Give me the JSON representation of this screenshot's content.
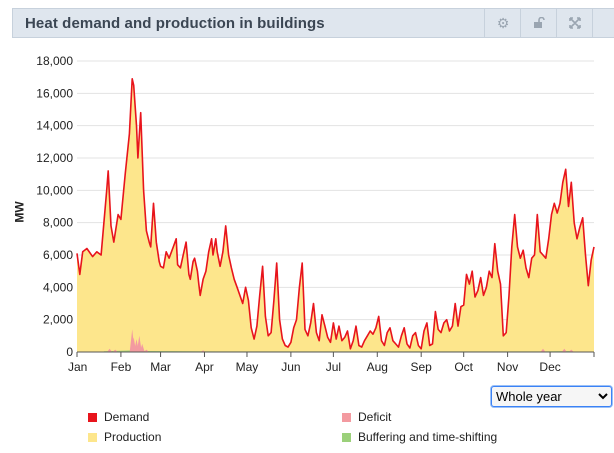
{
  "panel": {
    "title": "Heat demand and production in buildings",
    "buttons": [
      {
        "name": "settings-icon",
        "glyph": "⚙"
      },
      {
        "name": "unlock-icon",
        "glyph": "🔓"
      },
      {
        "name": "expand-icon",
        "glyph": "⤢"
      },
      {
        "name": "close-icon",
        "glyph": "✕"
      }
    ]
  },
  "period_select": {
    "selected": "Whole year",
    "options": [
      "Whole year"
    ]
  },
  "colors": {
    "demand": "#e8141c",
    "production": "#fde68c",
    "deficit": "#f39aa0",
    "buffering": "#9bd07a",
    "grid": "#e3e3e3"
  },
  "chart_data": {
    "type": "area",
    "title": "Heat demand and production in buildings",
    "xlabel": "",
    "ylabel": "MW",
    "ylim": [
      0,
      18000
    ],
    "yticks": [
      "0",
      "2,000",
      "4,000",
      "6,000",
      "8,000",
      "10,000",
      "12,000",
      "14,000",
      "16,000",
      "18,000"
    ],
    "x_tick_labels": [
      "Jan",
      "Feb",
      "Mar",
      "Apr",
      "May",
      "Jun",
      "Jul",
      "Aug",
      "Sep",
      "Oct",
      "Nov",
      "Dec"
    ],
    "x_unit": "day of year",
    "grid": true,
    "legend_position": "bottom",
    "series": [
      {
        "name": "Demand",
        "type": "line",
        "points": [
          [
            1,
            6100
          ],
          [
            3,
            4800
          ],
          [
            5,
            6200
          ],
          [
            8,
            6400
          ],
          [
            12,
            5900
          ],
          [
            15,
            6200
          ],
          [
            18,
            6000
          ],
          [
            22,
            10000
          ],
          [
            23,
            11200
          ],
          [
            25,
            7800
          ],
          [
            27,
            6800
          ],
          [
            30,
            8500
          ],
          [
            32,
            8200
          ],
          [
            35,
            11000
          ],
          [
            38,
            13500
          ],
          [
            40,
            16900
          ],
          [
            41,
            16500
          ],
          [
            43,
            14000
          ],
          [
            44,
            12000
          ],
          [
            46,
            14800
          ],
          [
            48,
            10000
          ],
          [
            50,
            7500
          ],
          [
            52,
            6800
          ],
          [
            53,
            6500
          ],
          [
            55,
            9200
          ],
          [
            57,
            6800
          ],
          [
            59,
            5600
          ],
          [
            60,
            5300
          ],
          [
            62,
            5200
          ],
          [
            64,
            6200
          ],
          [
            66,
            5800
          ],
          [
            69,
            6500
          ],
          [
            71,
            7000
          ],
          [
            72,
            5400
          ],
          [
            74,
            5200
          ],
          [
            76,
            6000
          ],
          [
            78,
            6800
          ],
          [
            80,
            4800
          ],
          [
            81,
            4500
          ],
          [
            83,
            5600
          ],
          [
            84,
            5800
          ],
          [
            86,
            5000
          ],
          [
            87,
            4200
          ],
          [
            88,
            3500
          ],
          [
            90,
            4500
          ],
          [
            92,
            5000
          ],
          [
            94,
            6200
          ],
          [
            96,
            7000
          ],
          [
            97,
            6000
          ],
          [
            99,
            7000
          ],
          [
            100,
            6200
          ],
          [
            102,
            5300
          ],
          [
            104,
            6200
          ],
          [
            106,
            7800
          ],
          [
            108,
            6000
          ],
          [
            110,
            5200
          ],
          [
            112,
            4500
          ],
          [
            114,
            4000
          ],
          [
            116,
            3500
          ],
          [
            118,
            3000
          ],
          [
            120,
            4000
          ],
          [
            122,
            3200
          ],
          [
            124,
            1500
          ],
          [
            126,
            800
          ],
          [
            128,
            1600
          ],
          [
            130,
            3500
          ],
          [
            132,
            5300
          ],
          [
            134,
            2200
          ],
          [
            136,
            1000
          ],
          [
            138,
            1200
          ],
          [
            140,
            3200
          ],
          [
            142,
            5500
          ],
          [
            144,
            2000
          ],
          [
            146,
            800
          ],
          [
            148,
            400
          ],
          [
            150,
            300
          ],
          [
            152,
            600
          ],
          [
            154,
            1500
          ],
          [
            156,
            2000
          ],
          [
            158,
            4000
          ],
          [
            160,
            5500
          ],
          [
            162,
            1400
          ],
          [
            164,
            1000
          ],
          [
            166,
            1800
          ],
          [
            168,
            3000
          ],
          [
            170,
            1200
          ],
          [
            172,
            700
          ],
          [
            174,
            2300
          ],
          [
            176,
            1600
          ],
          [
            178,
            900
          ],
          [
            180,
            600
          ],
          [
            182,
            1800
          ],
          [
            184,
            800
          ],
          [
            186,
            1600
          ],
          [
            188,
            700
          ],
          [
            190,
            900
          ],
          [
            192,
            1300
          ],
          [
            194,
            200
          ],
          [
            196,
            700
          ],
          [
            198,
            1600
          ],
          [
            200,
            400
          ],
          [
            202,
            300
          ],
          [
            204,
            700
          ],
          [
            206,
            1000
          ],
          [
            208,
            1300
          ],
          [
            210,
            1100
          ],
          [
            212,
            1500
          ],
          [
            214,
            2200
          ],
          [
            216,
            700
          ],
          [
            218,
            400
          ],
          [
            220,
            1200
          ],
          [
            222,
            1500
          ],
          [
            224,
            700
          ],
          [
            226,
            500
          ],
          [
            228,
            300
          ],
          [
            230,
            1000
          ],
          [
            232,
            1500
          ],
          [
            234,
            500
          ],
          [
            236,
            250
          ],
          [
            238,
            1000
          ],
          [
            240,
            1200
          ],
          [
            242,
            400
          ],
          [
            244,
            200
          ],
          [
            246,
            1300
          ],
          [
            248,
            1800
          ],
          [
            250,
            400
          ],
          [
            252,
            500
          ],
          [
            254,
            2500
          ],
          [
            256,
            1400
          ],
          [
            258,
            1200
          ],
          [
            260,
            1800
          ],
          [
            262,
            2000
          ],
          [
            264,
            1300
          ],
          [
            266,
            1600
          ],
          [
            268,
            3000
          ],
          [
            270,
            1600
          ],
          [
            272,
            2800
          ],
          [
            274,
            2900
          ],
          [
            276,
            4800
          ],
          [
            278,
            4200
          ],
          [
            280,
            5000
          ],
          [
            282,
            3400
          ],
          [
            284,
            3800
          ],
          [
            286,
            4600
          ],
          [
            288,
            3500
          ],
          [
            290,
            4000
          ],
          [
            292,
            5000
          ],
          [
            294,
            4600
          ],
          [
            296,
            6700
          ],
          [
            298,
            5000
          ],
          [
            300,
            4200
          ],
          [
            302,
            1000
          ],
          [
            304,
            1200
          ],
          [
            306,
            3500
          ],
          [
            308,
            6500
          ],
          [
            310,
            8500
          ],
          [
            312,
            6500
          ],
          [
            314,
            5800
          ],
          [
            316,
            6300
          ],
          [
            318,
            5200
          ],
          [
            320,
            4600
          ],
          [
            322,
            5800
          ],
          [
            324,
            6000
          ],
          [
            326,
            8500
          ],
          [
            328,
            6200
          ],
          [
            330,
            6000
          ],
          [
            332,
            5800
          ],
          [
            334,
            7000
          ],
          [
            336,
            8500
          ],
          [
            338,
            9200
          ],
          [
            340,
            8600
          ],
          [
            342,
            9200
          ],
          [
            344,
            10500
          ],
          [
            346,
            11300
          ],
          [
            348,
            9000
          ],
          [
            350,
            10500
          ],
          [
            352,
            8000
          ],
          [
            354,
            7000
          ],
          [
            356,
            7700
          ],
          [
            358,
            8300
          ],
          [
            360,
            6000
          ],
          [
            362,
            4100
          ],
          [
            364,
            5700
          ],
          [
            366,
            6500
          ]
        ]
      },
      {
        "name": "Production",
        "type": "area",
        "points": "same as Demand"
      },
      {
        "name": "Deficit",
        "type": "area",
        "points": [
          [
            24,
            200
          ],
          [
            28,
            150
          ],
          [
            40,
            1400
          ],
          [
            41,
            900
          ],
          [
            43,
            800
          ],
          [
            45,
            1000
          ],
          [
            47,
            500
          ],
          [
            50,
            150
          ],
          [
            90,
            100
          ],
          [
            330,
            200
          ],
          [
            345,
            200
          ],
          [
            350,
            150
          ]
        ]
      },
      {
        "name": "Buffering and time-shifting",
        "type": "area",
        "points": [
          [
            20,
            50
          ],
          [
            40,
            100
          ],
          [
            50,
            60
          ],
          [
            100,
            40
          ],
          [
            330,
            40
          ],
          [
            350,
            60
          ]
        ]
      }
    ]
  },
  "legend": [
    {
      "name": "Demand",
      "color_key": "demand"
    },
    {
      "name": "Deficit",
      "color_key": "deficit"
    },
    {
      "name": "Production",
      "color_key": "production"
    },
    {
      "name": "Buffering and time-shifting",
      "color_key": "buffering"
    }
  ]
}
